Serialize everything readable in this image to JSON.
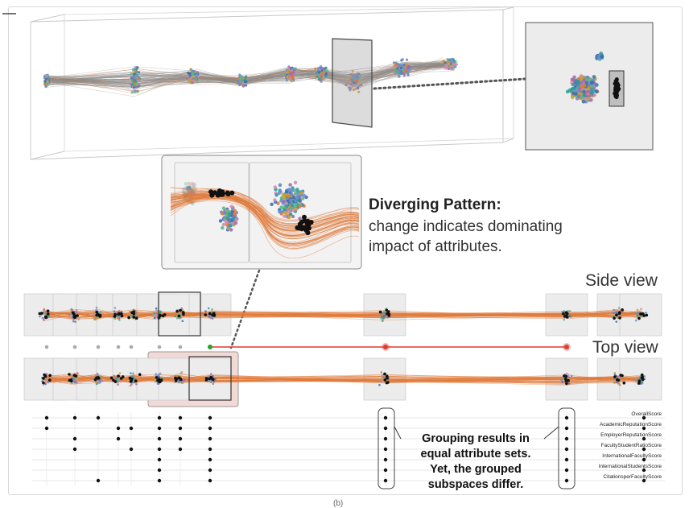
{
  "figure": {
    "caption": "(b)"
  },
  "callout": {
    "title": "Diverging Pattern:",
    "line1": "change indicates dominating",
    "line2": "impact of attributes."
  },
  "views": {
    "side": "Side view",
    "top": "Top view"
  },
  "grouping_note": {
    "line1": "Grouping results in",
    "line2": "equal attribute sets.",
    "line3": "Yet, the grouped",
    "line4": "subspaces differ."
  },
  "attributes": [
    "OverallScore",
    "AcademicReputationScore",
    "EmployerReputationScore",
    "FacultyStudentRatioScore",
    "InternationalFacultyScore",
    "InternationalStudentsScore",
    "CitationsperFacultyScore"
  ],
  "colors": {
    "orange": "#e07a3a",
    "red": "#e03c31",
    "green": "#2ca02c",
    "gray_panel": "#eeeeee",
    "teal": "#2a9d9b",
    "purple": "#9a6fb0",
    "blue": "#3b6fb6",
    "pink": "#d98ab0"
  }
}
